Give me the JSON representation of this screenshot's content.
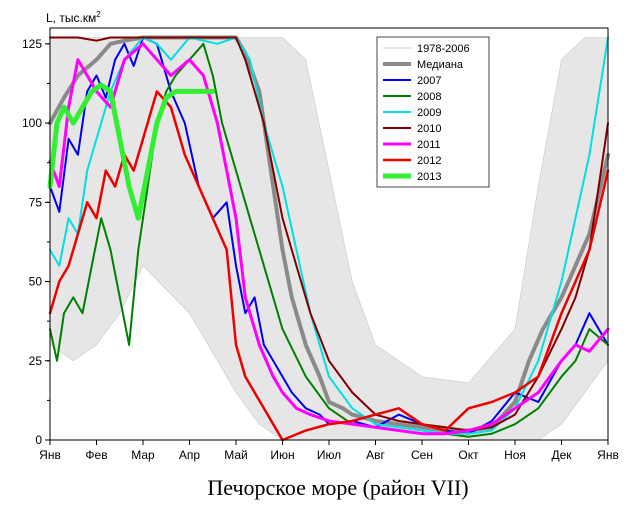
{
  "chart_data": {
    "type": "line",
    "caption": "Печорское море (район VII)",
    "ylabel": "L, тыс.км",
    "ylabel_sup": "2",
    "ylim": [
      0,
      130
    ],
    "yticks": [
      0,
      25,
      50,
      75,
      100,
      125
    ],
    "x_months": [
      "Янв",
      "Фев",
      "Мар",
      "Апр",
      "Май",
      "Июн",
      "Июл",
      "Авг",
      "Сен",
      "Окт",
      "Ноя",
      "Дек",
      "Янв"
    ],
    "grid": false,
    "legend_position": "top-right",
    "background_band": {
      "name": "1978-2006",
      "color": "#c8c8c8",
      "x": [
        0,
        0.5,
        1,
        1.5,
        2,
        3,
        4,
        4.5,
        5,
        5.5,
        6,
        6.5,
        7,
        8,
        9,
        10,
        10.5,
        11,
        11.5,
        12
      ],
      "upper": [
        127,
        127,
        127,
        127,
        127,
        127,
        127,
        127,
        127,
        120,
        85,
        50,
        30,
        20,
        18,
        35,
        80,
        120,
        127,
        127
      ],
      "lower": [
        30,
        25,
        30,
        40,
        55,
        40,
        15,
        5,
        0,
        0,
        0,
        0,
        0,
        0,
        0,
        0,
        0,
        5,
        15,
        25
      ]
    },
    "series": [
      {
        "name": "Медиана",
        "color": "#8a8a8a",
        "width": 4,
        "x": [
          0,
          0.3,
          0.6,
          1,
          1.3,
          1.6,
          2,
          2.5,
          3,
          3.5,
          4,
          4.2,
          4.5,
          4.8,
          5,
          5.2,
          5.5,
          5.8,
          6,
          6.3,
          6.5,
          7,
          7.5,
          8,
          8.5,
          9,
          9.5,
          10,
          10.3,
          10.6,
          11,
          11.3,
          11.6,
          12
        ],
        "y": [
          100,
          108,
          115,
          120,
          125,
          126,
          127,
          127,
          127,
          127,
          127,
          122,
          110,
          80,
          60,
          45,
          30,
          20,
          12,
          10,
          8,
          6,
          5,
          4,
          3,
          3,
          4,
          12,
          25,
          35,
          45,
          55,
          65,
          90
        ]
      },
      {
        "name": "2007",
        "color": "#0000ee",
        "width": 2,
        "x": [
          0,
          0.2,
          0.4,
          0.6,
          0.8,
          1,
          1.2,
          1.4,
          1.6,
          1.8,
          2,
          2.3,
          2.6,
          2.9,
          3.2,
          3.5,
          3.8,
          4,
          4.2,
          4.4,
          4.6,
          4.8,
          5,
          5.2,
          5.5,
          5.8,
          6,
          6.5,
          7,
          7.5,
          8,
          8.5,
          9,
          9.5,
          10,
          10.5,
          11,
          11.3,
          11.6,
          12
        ],
        "y": [
          80,
          72,
          95,
          90,
          110,
          115,
          108,
          120,
          125,
          118,
          127,
          125,
          110,
          100,
          80,
          70,
          75,
          55,
          40,
          45,
          30,
          25,
          20,
          15,
          10,
          8,
          5,
          6,
          4,
          8,
          5,
          3,
          2,
          6,
          15,
          12,
          25,
          30,
          40,
          30
        ]
      },
      {
        "name": "2008",
        "color": "#008000",
        "width": 2,
        "x": [
          0,
          0.15,
          0.3,
          0.5,
          0.7,
          0.9,
          1.1,
          1.3,
          1.5,
          1.7,
          1.9,
          2.1,
          2.3,
          2.5,
          2.7,
          3,
          3.3,
          3.5,
          3.7,
          4,
          4.3,
          4.6,
          5,
          5.5,
          6,
          6.5,
          7,
          7.5,
          8,
          8.5,
          9,
          9.5,
          10,
          10.5,
          11,
          11.3,
          11.6,
          12
        ],
        "y": [
          35,
          25,
          40,
          45,
          40,
          55,
          70,
          60,
          45,
          30,
          60,
          80,
          100,
          110,
          115,
          120,
          125,
          115,
          100,
          85,
          70,
          55,
          35,
          20,
          10,
          5,
          4,
          3,
          2,
          2,
          1,
          2,
          5,
          10,
          20,
          25,
          35,
          30
        ]
      },
      {
        "name": "2009",
        "color": "#00e0e0",
        "width": 2,
        "x": [
          0,
          0.2,
          0.4,
          0.6,
          0.8,
          1,
          1.3,
          1.6,
          2,
          2.3,
          2.6,
          3,
          3.3,
          3.6,
          4,
          4.3,
          4.6,
          5,
          5.3,
          5.6,
          6,
          6.5,
          7,
          7.5,
          8,
          8.5,
          9,
          9.5,
          10,
          10.5,
          11,
          11.3,
          11.6,
          12
        ],
        "y": [
          60,
          55,
          70,
          65,
          85,
          95,
          110,
          120,
          127,
          125,
          120,
          127,
          126,
          125,
          127,
          120,
          100,
          80,
          60,
          40,
          20,
          10,
          5,
          4,
          3,
          2,
          2,
          3,
          10,
          25,
          50,
          70,
          90,
          127
        ]
      },
      {
        "name": "2010",
        "color": "#800000",
        "width": 2,
        "x": [
          0,
          0.3,
          0.6,
          1,
          1.3,
          1.6,
          2,
          2.5,
          3,
          3.5,
          4,
          4.2,
          4.4,
          4.6,
          4.8,
          5,
          5.3,
          5.6,
          6,
          6.5,
          7,
          7.5,
          8,
          8.5,
          9,
          9.5,
          10,
          10.5,
          11,
          11.3,
          11.6,
          12
        ],
        "y": [
          127,
          127,
          127,
          126,
          127,
          127,
          127,
          127,
          127,
          127,
          127,
          120,
          110,
          100,
          85,
          70,
          55,
          40,
          25,
          15,
          8,
          6,
          5,
          4,
          3,
          4,
          8,
          20,
          35,
          45,
          60,
          100
        ]
      },
      {
        "name": "2011",
        "color": "#ff00ff",
        "width": 3,
        "x": [
          0,
          0.2,
          0.4,
          0.6,
          0.8,
          1,
          1.3,
          1.6,
          2,
          2.3,
          2.6,
          3,
          3.3,
          3.6,
          4,
          4.2,
          4.5,
          4.8,
          5,
          5.3,
          5.6,
          6,
          6.5,
          7,
          7.5,
          8,
          8.5,
          9,
          9.5,
          10,
          10.5,
          11,
          11.3,
          11.6,
          12
        ],
        "y": [
          88,
          80,
          105,
          120,
          115,
          110,
          105,
          120,
          125,
          120,
          115,
          120,
          115,
          100,
          70,
          45,
          30,
          20,
          15,
          10,
          8,
          6,
          5,
          4,
          3,
          2,
          2,
          3,
          5,
          10,
          15,
          25,
          30,
          28,
          35
        ]
      },
      {
        "name": "2012",
        "color": "#ee0000",
        "width": 2.5,
        "x": [
          0,
          0.2,
          0.4,
          0.6,
          0.8,
          1,
          1.2,
          1.4,
          1.6,
          1.8,
          2,
          2.3,
          2.6,
          2.9,
          3.2,
          3.5,
          3.8,
          4,
          4.2,
          4.4,
          4.6,
          4.8,
          5,
          5.5,
          6,
          6.5,
          7,
          7.5,
          8,
          8.5,
          9,
          9.5,
          10,
          10.5,
          11,
          11.3,
          11.6,
          12
        ],
        "y": [
          40,
          50,
          55,
          65,
          75,
          70,
          85,
          80,
          90,
          85,
          95,
          110,
          105,
          90,
          80,
          70,
          60,
          30,
          20,
          15,
          10,
          5,
          0,
          3,
          5,
          6,
          8,
          10,
          5,
          3,
          10,
          12,
          15,
          20,
          40,
          50,
          60,
          85
        ]
      },
      {
        "name": "2013",
        "color": "#33ee33",
        "width": 5,
        "x": [
          0,
          0.15,
          0.3,
          0.5,
          0.7,
          0.9,
          1.1,
          1.3,
          1.5,
          1.7,
          1.9,
          2.1,
          2.3,
          2.5,
          2.7,
          2.9,
          3.1,
          3.3,
          3.5
        ],
        "y": [
          80,
          100,
          105,
          100,
          105,
          110,
          112,
          110,
          95,
          80,
          70,
          85,
          100,
          108,
          110,
          110,
          110,
          110,
          110
        ]
      }
    ]
  }
}
